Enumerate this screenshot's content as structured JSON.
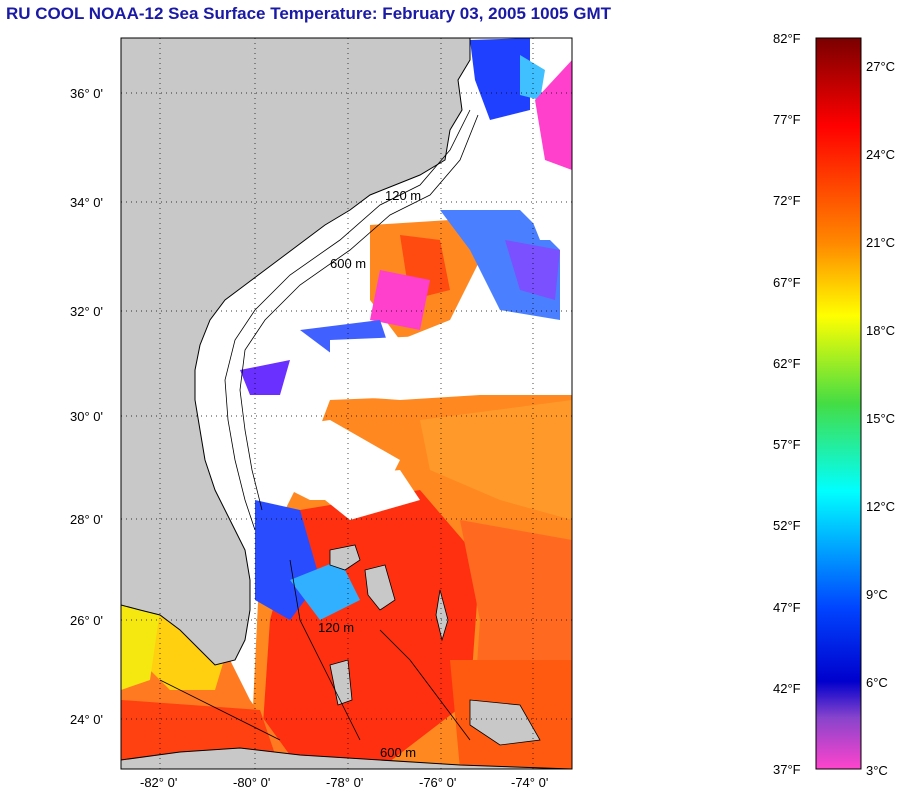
{
  "title": "RU COOL  NOAA-12  Sea Surface Temperature:  February 03, 2005 1005 GMT",
  "map": {
    "lat_labels": [
      "36° 0'",
      "34° 0'",
      "32° 0'",
      "30° 0'",
      "28° 0'",
      "26° 0'",
      "24° 0'"
    ],
    "lon_labels": [
      "-82° 0'",
      "-80° 0'",
      "-78° 0'",
      "-76° 0'",
      "-74° 0'"
    ],
    "contour_labels": [
      "120 m",
      "600 m"
    ],
    "colors": {
      "land": "#c8c8c8",
      "cloud": "#ffffff",
      "coast": "#000000"
    }
  },
  "colorbar": {
    "f_labels": [
      "82°F",
      "77°F",
      "72°F",
      "67°F",
      "62°F",
      "57°F",
      "52°F",
      "47°F",
      "42°F",
      "37°F"
    ],
    "c_labels": [
      "27°C",
      "24°C",
      "21°C",
      "18°C",
      "15°C",
      "12°C",
      "9°C",
      "6°C",
      "3°C"
    ]
  }
}
